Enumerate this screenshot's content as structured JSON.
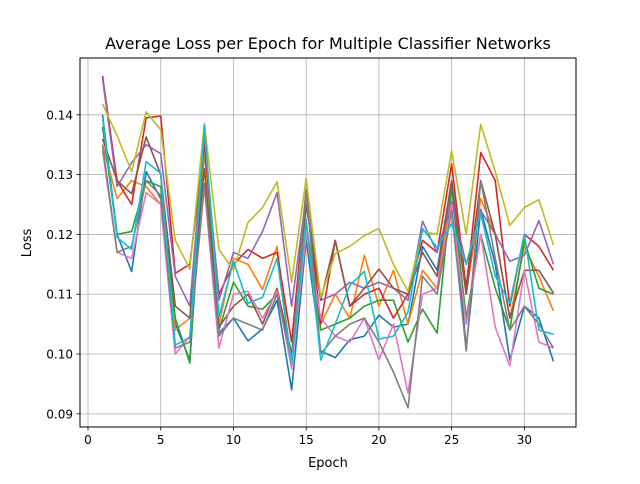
{
  "chart_data": {
    "type": "line",
    "title": "Average Loss per Epoch for Multiple Classifier Networks",
    "xlabel": "Epoch",
    "ylabel": "Loss",
    "xlim": [
      -0.55,
      33.55
    ],
    "ylim": [
      0.0878,
      0.1495
    ],
    "xticks": [
      0,
      5,
      10,
      15,
      20,
      25,
      30
    ],
    "yticks": [
      0.09,
      0.1,
      0.11,
      0.12,
      0.13,
      0.14
    ],
    "ytick_labels": [
      "0.09",
      "0.10",
      "0.11",
      "0.12",
      "0.13",
      "0.14"
    ],
    "grid": true,
    "legend": "none",
    "x": [
      1,
      2,
      3,
      4,
      5,
      6,
      7,
      8,
      9,
      10,
      11,
      12,
      13,
      14,
      15,
      16,
      17,
      18,
      19,
      20,
      21,
      22,
      23,
      24,
      25,
      26,
      27,
      28,
      29,
      30,
      31,
      32
    ],
    "series": [
      {
        "color": "#1f77b4",
        "values": [
          0.14,
          0.12,
          0.1138,
          0.1305,
          0.126,
          0.105,
          0.099,
          0.134,
          0.1035,
          0.106,
          0.1022,
          0.1042,
          0.109,
          0.094,
          0.1192,
          0.1005,
          0.0994,
          0.1024,
          0.103,
          0.1065,
          0.1045,
          0.105,
          0.118,
          0.114,
          0.129,
          0.101,
          0.1242,
          0.115,
          0.099,
          0.108,
          0.106,
          0.0988
        ]
      },
      {
        "color": "#ff7f0e",
        "values": [
          0.135,
          0.126,
          0.129,
          0.128,
          0.125,
          0.104,
          0.106,
          0.134,
          0.105,
          0.116,
          0.115,
          0.1108,
          0.118,
          0.098,
          0.12,
          0.105,
          0.11,
          0.106,
          0.1165,
          0.108,
          0.114,
          0.105,
          0.114,
          0.111,
          0.128,
          0.11,
          0.126,
          0.12,
          0.106,
          0.118,
          0.113,
          0.1072
        ]
      },
      {
        "color": "#2ca02c",
        "values": [
          0.138,
          0.12,
          0.1205,
          0.129,
          0.128,
          0.106,
          0.0985,
          0.137,
          0.104,
          0.112,
          0.108,
          0.1075,
          0.11,
          0.1,
          0.122,
          0.104,
          0.105,
          0.106,
          0.108,
          0.109,
          0.109,
          0.102,
          0.1075,
          0.1035,
          0.128,
          0.106,
          0.12,
          0.111,
          0.104,
          0.119,
          0.111,
          0.11
        ]
      },
      {
        "color": "#d62728",
        "values": [
          0.1465,
          0.129,
          0.125,
          0.1395,
          0.1398,
          0.1135,
          0.115,
          0.135,
          0.11,
          0.115,
          0.1175,
          0.116,
          0.117,
          0.102,
          0.1275,
          0.105,
          0.119,
          0.108,
          0.11,
          0.111,
          0.106,
          0.11,
          0.119,
          0.117,
          0.1318,
          0.111,
          0.1337,
          0.129,
          0.108,
          0.12,
          0.118,
          0.114
        ]
      },
      {
        "color": "#9467bd",
        "values": [
          0.146,
          0.128,
          0.132,
          0.135,
          0.1335,
          0.113,
          0.108,
          0.137,
          0.109,
          0.117,
          0.116,
          0.1205,
          0.127,
          0.108,
          0.1265,
          0.109,
          0.11,
          0.112,
          0.111,
          0.112,
          0.111,
          0.109,
          0.1222,
          0.117,
          0.1255,
          0.115,
          0.124,
          0.12,
          0.1155,
          0.1165,
          0.1223,
          0.115
        ]
      },
      {
        "color": "#8c564b",
        "values": [
          0.136,
          0.129,
          0.1268,
          0.1363,
          0.13,
          0.108,
          0.106,
          0.131,
          0.1045,
          0.108,
          0.11,
          0.105,
          0.111,
          0.1,
          0.125,
          0.109,
          0.119,
          0.108,
          0.111,
          0.1142,
          0.111,
          0.11,
          0.117,
          0.113,
          0.129,
          0.11,
          0.129,
          0.12,
          0.106,
          0.114,
          0.114,
          0.1102
        ]
      },
      {
        "color": "#e377c2",
        "values": [
          0.134,
          0.117,
          0.116,
          0.127,
          0.125,
          0.1,
          0.103,
          0.128,
          0.101,
          0.11,
          0.1105,
          0.106,
          0.1105,
          0.0975,
          0.1205,
          0.106,
          0.103,
          0.102,
          0.106,
          0.099,
          0.105,
          0.0935,
          0.11,
          0.111,
          0.125,
          0.105,
          0.12,
          0.1045,
          0.098,
          0.114,
          0.102,
          0.101
        ]
      },
      {
        "color": "#7f7f7f",
        "values": [
          0.135,
          0.117,
          0.118,
          0.129,
          0.1265,
          0.101,
          0.102,
          0.1285,
          0.103,
          0.106,
          0.105,
          0.104,
          0.11,
          0.099,
          0.1275,
          0.1,
          0.103,
          0.105,
          0.106,
          0.102,
          0.097,
          0.091,
          0.113,
          0.11,
          0.124,
          0.1005,
          0.129,
          0.116,
          0.104,
          0.108,
          0.105,
          0.101
        ]
      },
      {
        "color": "#bcbd22",
        "values": [
          0.1418,
          0.1365,
          0.1305,
          0.1405,
          0.1375,
          0.119,
          0.1142,
          0.1386,
          0.1175,
          0.114,
          0.122,
          0.1245,
          0.1288,
          0.112,
          0.1294,
          0.1095,
          0.1168,
          0.118,
          0.1198,
          0.121,
          0.115,
          0.1105,
          0.1205,
          0.12,
          0.134,
          0.12,
          0.1384,
          0.1305,
          0.1215,
          0.1245,
          0.1258,
          0.1182
        ]
      },
      {
        "color": "#17becf",
        "values": [
          0.1395,
          0.1195,
          0.1175,
          0.1322,
          0.1302,
          0.1015,
          0.1028,
          0.1382,
          0.1062,
          0.1155,
          0.1085,
          0.1095,
          0.116,
          0.0985,
          0.1225,
          0.099,
          0.105,
          0.1115,
          0.1138,
          0.1025,
          0.103,
          0.107,
          0.121,
          0.1178,
          0.1218,
          0.115,
          0.1235,
          0.113,
          0.1085,
          0.12,
          0.104,
          0.1033
        ]
      }
    ]
  }
}
